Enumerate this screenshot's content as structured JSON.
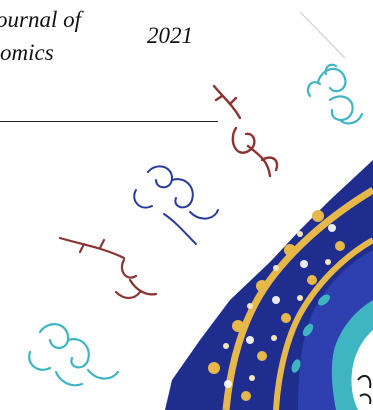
{
  "header": {
    "journal_line_1": "ournal of",
    "journal_line_2": "omics",
    "year": "2021"
  },
  "colors": {
    "navy": "#1f2d8f",
    "royal_blue": "#2e3fb0",
    "gold": "#e6b84a",
    "cream": "#f3e6bd",
    "turquoise": "#3fb5c2",
    "maroon": "#8a3434",
    "white": "#ffffff"
  }
}
